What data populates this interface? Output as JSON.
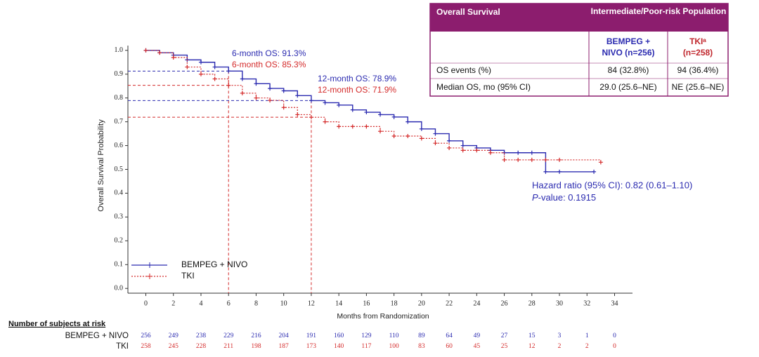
{
  "chart_data": {
    "type": "line",
    "step": true,
    "x_label": "Months from Randomization",
    "y_label": "Overall Survival Probability",
    "xlim": [
      -1.3,
      35.3
    ],
    "ylim": [
      -0.02,
      1.02
    ],
    "xticks": [
      0,
      2,
      4,
      6,
      8,
      10,
      12,
      14,
      16,
      18,
      20,
      22,
      24,
      26,
      28,
      30,
      32,
      34
    ],
    "yticks": [
      {
        "value": 0,
        "label": "0.0"
      },
      0.1,
      0.2,
      0.3,
      0.4,
      0.5,
      0.6,
      0.7,
      0.8,
      0.9,
      {
        "value": 1,
        "label": "1.0"
      }
    ],
    "series": [
      {
        "name": "BEMPEG + NIVO",
        "color": "#2b2bb0",
        "dash": false,
        "x": [
          0,
          1,
          2,
          3,
          4,
          5,
          6,
          7,
          8,
          9,
          10,
          11,
          12,
          13,
          14,
          15,
          16,
          17,
          18,
          19,
          20,
          21,
          22,
          23,
          24,
          25,
          26,
          27,
          28,
          29,
          30,
          32.5
        ],
        "values": [
          1.0,
          0.99,
          0.98,
          0.96,
          0.95,
          0.93,
          0.913,
          0.88,
          0.86,
          0.84,
          0.83,
          0.81,
          0.789,
          0.78,
          0.77,
          0.75,
          0.74,
          0.73,
          0.72,
          0.7,
          0.67,
          0.65,
          0.62,
          0.6,
          0.59,
          0.58,
          0.57,
          0.57,
          0.57,
          0.49,
          0.49,
          0.49
        ]
      },
      {
        "name": "TKI",
        "color": "#d42a2a",
        "dash": true,
        "x": [
          0,
          1,
          2,
          3,
          4,
          5,
          6,
          7,
          8,
          9,
          10,
          11,
          12,
          13,
          14,
          15,
          16,
          17,
          18,
          19,
          20,
          21,
          22,
          23,
          24,
          25,
          26,
          27,
          28,
          29,
          30,
          33
        ],
        "values": [
          1.0,
          0.99,
          0.97,
          0.93,
          0.9,
          0.88,
          0.853,
          0.82,
          0.8,
          0.79,
          0.76,
          0.73,
          0.719,
          0.7,
          0.68,
          0.68,
          0.68,
          0.66,
          0.64,
          0.64,
          0.63,
          0.61,
          0.59,
          0.58,
          0.58,
          0.57,
          0.54,
          0.54,
          0.54,
          0.54,
          0.54,
          0.53
        ]
      }
    ],
    "annotations": [
      "6-month OS: 91.3%",
      "6-month OS: 85.3%",
      "12-month OS: 78.9%",
      "12-month OS: 71.9%",
      "Hazard ratio (95% CI): 0.82 (0.61–1.10)"
    ],
    "p_value": {
      "italic": "P",
      "text": "-value: 0.1915"
    },
    "risk_table": {
      "title": "Number of subjects at risk",
      "rows": [
        {
          "name": "BEMPEG + NIVO",
          "values": [
            256,
            249,
            238,
            229,
            216,
            204,
            191,
            160,
            129,
            110,
            89,
            64,
            49,
            27,
            15,
            3,
            1,
            0
          ]
        },
        {
          "name": "TKI",
          "values": [
            258,
            245,
            228,
            211,
            198,
            187,
            173,
            140,
            117,
            100,
            83,
            60,
            45,
            25,
            12,
            2,
            2,
            0
          ]
        }
      ]
    }
  },
  "table": {
    "header": [
      "Overall Survival",
      "Intermediate/Poor-risk Population"
    ],
    "columns": [
      [
        "BEMPEG +",
        "NIVO (n=256)"
      ],
      [
        "TKIᵃ",
        "(n=258)"
      ]
    ],
    "rows": [
      [
        "OS events (%)",
        "84 (32.8%)",
        "94 (36.4%)"
      ],
      [
        "Median OS, mo (95% CI)",
        "29.0 (25.6–NE)",
        "NE (25.6–NE)"
      ]
    ]
  }
}
